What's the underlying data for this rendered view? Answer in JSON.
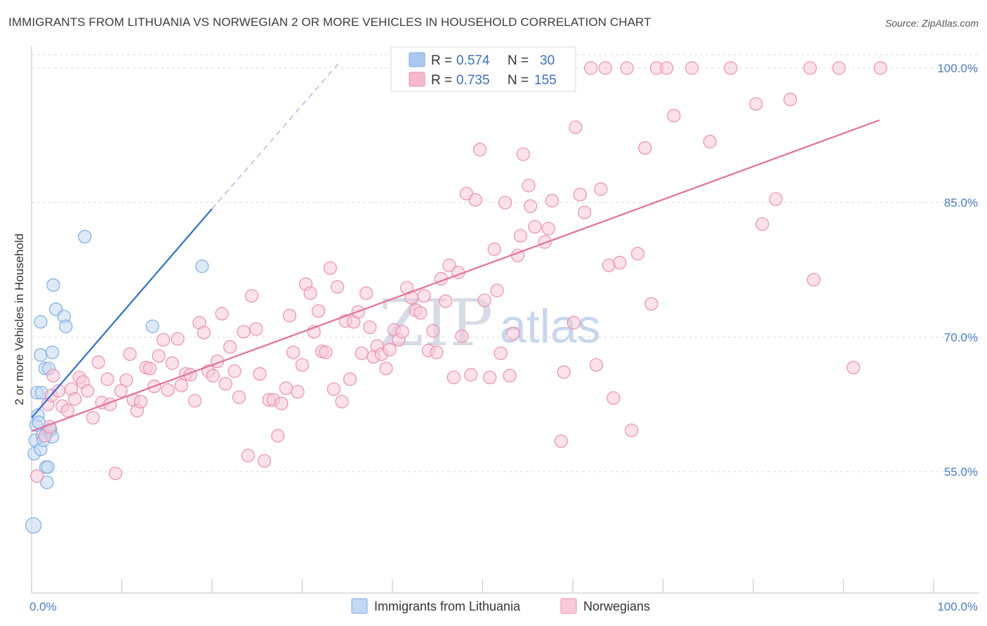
{
  "title": "IMMIGRANTS FROM LITHUANIA VS NORWEGIAN 2 OR MORE VEHICLES IN HOUSEHOLD CORRELATION CHART",
  "source": "Source: ZipAtlas.com",
  "watermark": {
    "zip": "ZIP",
    "atlas": "atlas"
  },
  "legend_stats": [
    {
      "r_label": "R = ",
      "r_value": "0.574",
      "n_label": "N = ",
      "n_value": "30",
      "color": "#aac8f0"
    },
    {
      "r_label": "R = ",
      "r_value": "0.735",
      "n_label": "N = ",
      "n_value": "155",
      "color": "#f5b8cc"
    }
  ],
  "chart_data": {
    "type": "scatter",
    "title": "IMMIGRANTS FROM LITHUANIA VS NORWEGIAN 2 OR MORE VEHICLES IN HOUSEHOLD CORRELATION CHART",
    "xlabel": "",
    "ylabel": "2 or more Vehicles in Household",
    "xlim": [
      0,
      100
    ],
    "ylim": [
      40,
      102
    ],
    "x_tick_labels": [
      {
        "v": 0,
        "label": "0.0%"
      },
      {
        "v": 100,
        "label": "100.0%"
      }
    ],
    "y_tick_labels": [
      {
        "v": 55,
        "label": "55.0%"
      },
      {
        "v": 70,
        "label": "70.0%"
      },
      {
        "v": 85,
        "label": "85.0%"
      },
      {
        "v": 100,
        "label": "100.0%"
      }
    ],
    "grid": true,
    "legend_position": "bottom",
    "series": [
      {
        "name": "Immigrants from Lithuania",
        "color": "#7aaee8",
        "fill": "#c2d8f3",
        "trend": {
          "x0": 0.0,
          "y0": 61.0,
          "x1": 20.0,
          "y1": 84.3,
          "dash_to_x": 34.0,
          "dash_to_y": 100.5
        },
        "points": [
          [
            0.2,
            49.0
          ],
          [
            0.3,
            57.0
          ],
          [
            0.4,
            58.5
          ],
          [
            0.5,
            60.2
          ],
          [
            0.6,
            63.8
          ],
          [
            0.7,
            61.3
          ],
          [
            0.8,
            60.5
          ],
          [
            1.0,
            57.5
          ],
          [
            1.0,
            68.0
          ],
          [
            1.0,
            71.7
          ],
          [
            1.2,
            59.0
          ],
          [
            1.3,
            58.5
          ],
          [
            1.5,
            66.5
          ],
          [
            1.6,
            55.5
          ],
          [
            1.7,
            53.8
          ],
          [
            1.8,
            55.5
          ],
          [
            1.8,
            59.5
          ],
          [
            1.9,
            66.5
          ],
          [
            2.0,
            59.7
          ],
          [
            2.1,
            59.7
          ],
          [
            2.3,
            68.3
          ],
          [
            2.3,
            58.9
          ],
          [
            2.4,
            75.8
          ],
          [
            2.7,
            73.1
          ],
          [
            3.6,
            72.3
          ],
          [
            3.8,
            71.2
          ],
          [
            5.9,
            81.2
          ],
          [
            13.4,
            71.2
          ],
          [
            18.9,
            77.9
          ],
          [
            1.1,
            63.8
          ]
        ]
      },
      {
        "name": "Norwegians",
        "color": "#ee8fae",
        "fill": "#f8c9d8",
        "trend": {
          "x0": 0.0,
          "y0": 59.5,
          "x1": 94.0,
          "y1": 94.2
        },
        "points": [
          [
            0.6,
            54.5
          ],
          [
            1.5,
            59.0
          ],
          [
            1.8,
            62.5
          ],
          [
            2.0,
            60.0
          ],
          [
            2.2,
            63.5
          ],
          [
            2.4,
            65.7
          ],
          [
            3.0,
            64.0
          ],
          [
            3.4,
            62.3
          ],
          [
            4.0,
            61.8
          ],
          [
            4.4,
            64.2
          ],
          [
            4.8,
            63.1
          ],
          [
            5.3,
            65.5
          ],
          [
            5.7,
            65.0
          ],
          [
            6.2,
            64.0
          ],
          [
            6.8,
            61.0
          ],
          [
            7.4,
            67.2
          ],
          [
            7.8,
            62.7
          ],
          [
            8.4,
            65.3
          ],
          [
            8.7,
            62.5
          ],
          [
            9.3,
            54.8
          ],
          [
            9.9,
            64.0
          ],
          [
            10.5,
            65.2
          ],
          [
            10.9,
            68.1
          ],
          [
            11.3,
            63.0
          ],
          [
            11.7,
            61.8
          ],
          [
            12.1,
            62.8
          ],
          [
            12.7,
            66.6
          ],
          [
            13.1,
            66.5
          ],
          [
            13.6,
            64.5
          ],
          [
            14.1,
            67.9
          ],
          [
            14.6,
            69.7
          ],
          [
            15.1,
            64.1
          ],
          [
            15.6,
            67.1
          ],
          [
            16.2,
            69.8
          ],
          [
            16.6,
            64.6
          ],
          [
            17.1,
            65.9
          ],
          [
            17.6,
            65.8
          ],
          [
            18.1,
            62.9
          ],
          [
            18.6,
            71.6
          ],
          [
            19.1,
            70.5
          ],
          [
            19.6,
            66.2
          ],
          [
            20.1,
            65.7
          ],
          [
            20.6,
            67.3
          ],
          [
            21.1,
            72.6
          ],
          [
            21.5,
            64.8
          ],
          [
            22.0,
            68.9
          ],
          [
            22.5,
            66.2
          ],
          [
            23.0,
            63.3
          ],
          [
            23.5,
            70.6
          ],
          [
            24.0,
            56.8
          ],
          [
            24.4,
            74.6
          ],
          [
            24.9,
            70.9
          ],
          [
            25.3,
            65.9
          ],
          [
            25.8,
            56.2
          ],
          [
            26.3,
            63.0
          ],
          [
            26.8,
            63.0
          ],
          [
            27.3,
            59.0
          ],
          [
            27.7,
            62.6
          ],
          [
            28.2,
            64.3
          ],
          [
            28.6,
            72.4
          ],
          [
            29.0,
            68.3
          ],
          [
            29.5,
            63.9
          ],
          [
            30.0,
            66.9
          ],
          [
            30.4,
            75.9
          ],
          [
            30.9,
            74.9
          ],
          [
            31.3,
            70.6
          ],
          [
            31.8,
            72.9
          ],
          [
            32.2,
            68.4
          ],
          [
            32.6,
            68.3
          ],
          [
            33.1,
            77.7
          ],
          [
            33.5,
            64.2
          ],
          [
            33.9,
            75.6
          ],
          [
            34.4,
            62.8
          ],
          [
            34.8,
            71.8
          ],
          [
            35.3,
            65.3
          ],
          [
            35.7,
            71.7
          ],
          [
            36.2,
            72.8
          ],
          [
            36.6,
            68.2
          ],
          [
            37.1,
            74.9
          ],
          [
            37.5,
            71.1
          ],
          [
            37.9,
            67.8
          ],
          [
            38.3,
            69.0
          ],
          [
            38.8,
            68.1
          ],
          [
            39.3,
            66.5
          ],
          [
            39.7,
            68.6
          ],
          [
            40.2,
            70.8
          ],
          [
            40.7,
            69.7
          ],
          [
            41.1,
            70.6
          ],
          [
            41.6,
            75.5
          ],
          [
            42.1,
            74.4
          ],
          [
            42.6,
            73.0
          ],
          [
            43.1,
            72.7
          ],
          [
            43.5,
            74.6
          ],
          [
            44.0,
            68.5
          ],
          [
            44.5,
            70.7
          ],
          [
            44.9,
            68.3
          ],
          [
            45.4,
            76.5
          ],
          [
            45.9,
            74.0
          ],
          [
            46.3,
            78.0
          ],
          [
            46.8,
            65.5
          ],
          [
            47.3,
            77.2
          ],
          [
            47.7,
            70.1
          ],
          [
            48.2,
            86.0
          ],
          [
            48.7,
            65.8
          ],
          [
            49.2,
            85.3
          ],
          [
            49.7,
            90.9
          ],
          [
            50.2,
            74.1
          ],
          [
            50.8,
            65.5
          ],
          [
            51.3,
            79.8
          ],
          [
            51.6,
            75.2
          ],
          [
            52.0,
            68.2
          ],
          [
            52.5,
            85.0
          ],
          [
            53.0,
            65.7
          ],
          [
            53.4,
            70.4
          ],
          [
            53.9,
            79.1
          ],
          [
            54.2,
            81.3
          ],
          [
            54.5,
            90.4
          ],
          [
            55.1,
            86.9
          ],
          [
            55.3,
            84.6
          ],
          [
            55.8,
            82.3
          ],
          [
            56.3,
            100.0
          ],
          [
            56.9,
            80.6
          ],
          [
            57.3,
            82.1
          ],
          [
            57.7,
            85.2
          ],
          [
            58.3,
            100.0
          ],
          [
            58.7,
            58.4
          ],
          [
            59.0,
            66.1
          ],
          [
            59.5,
            100.0
          ],
          [
            60.1,
            71.6
          ],
          [
            60.3,
            93.4
          ],
          [
            60.8,
            85.9
          ],
          [
            61.3,
            83.9
          ],
          [
            62.0,
            100.0
          ],
          [
            62.6,
            66.9
          ],
          [
            63.1,
            86.5
          ],
          [
            63.6,
            100.0
          ],
          [
            64.0,
            78.0
          ],
          [
            64.5,
            63.2
          ],
          [
            65.2,
            78.3
          ],
          [
            66.0,
            100.0
          ],
          [
            66.5,
            59.6
          ],
          [
            67.2,
            79.3
          ],
          [
            68.0,
            91.1
          ],
          [
            68.7,
            73.7
          ],
          [
            69.3,
            100.0
          ],
          [
            70.4,
            100.0
          ],
          [
            71.2,
            94.7
          ],
          [
            73.2,
            100.0
          ],
          [
            75.2,
            91.8
          ],
          [
            77.5,
            100.0
          ],
          [
            80.3,
            96.0
          ],
          [
            81.0,
            82.6
          ],
          [
            82.5,
            85.4
          ],
          [
            84.1,
            96.5
          ],
          [
            86.3,
            100.0
          ],
          [
            86.7,
            76.4
          ],
          [
            89.5,
            100.0
          ],
          [
            91.1,
            66.6
          ],
          [
            94.1,
            100.0
          ]
        ]
      }
    ]
  },
  "bottom_legend": [
    {
      "label": "Immigrants from Lithuania",
      "fill": "#c2d8f3",
      "stroke": "#7aaee8"
    },
    {
      "label": "Norwegians",
      "fill": "#f8c9d8",
      "stroke": "#ee8fae"
    }
  ]
}
